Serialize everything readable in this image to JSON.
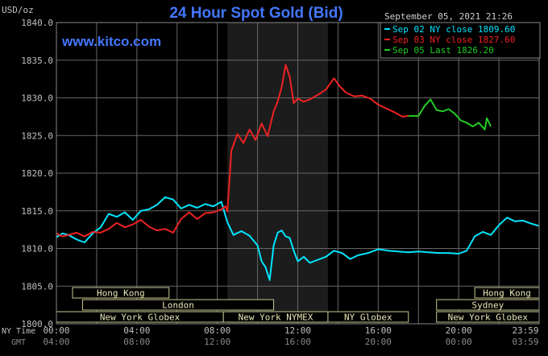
{
  "chart_data": {
    "type": "line",
    "title": "24 Hour Spot Gold (Bid)",
    "ylabel": "USD/oz",
    "site": "www.kitco.com",
    "timestamp": "September 05, 2021 21:26",
    "ylim": [
      1800,
      1840
    ],
    "yticks": [
      "1840.0",
      "1835.0",
      "1830.0",
      "1825.0",
      "1820.0",
      "1815.0",
      "1810.0",
      "1805.0",
      "1800.0"
    ],
    "yticks_values": [
      1840,
      1835,
      1830,
      1825,
      1820,
      1815,
      1810,
      1805,
      1800
    ],
    "x_range": [
      0,
      24
    ],
    "xticks_values": [
      0,
      4,
      8,
      12,
      16,
      20,
      23.983
    ],
    "xticks_ny": [
      "00:00",
      "04:00",
      "08:00",
      "12:00",
      "16:00",
      "20:00",
      "23:59"
    ],
    "xticks_gmt": [
      "04:00",
      "08:00",
      "12:00",
      "16:00",
      "20:00",
      "00:00",
      "03:59"
    ],
    "row_label_ny": "NY Time",
    "row_label_gmt": "GMT",
    "shaded_range": [
      8.5,
      13.5
    ],
    "colors": {
      "cyan": "#00e5ff",
      "red": "#ee2222",
      "green": "#22cc22",
      "grid": "#888888",
      "title": "#4477ff",
      "site": "#4477ff",
      "session_bg": "#000000",
      "session_border": "#c8c890",
      "text": "#c0c0c0"
    },
    "legend": [
      {
        "name": "Sep 02 NY close 1809.60",
        "color": "#00e5ff"
      },
      {
        "name": "Sep 03 NY close 1827.60",
        "color": "#ee2222"
      },
      {
        "name": "Sep 05 Last 1826.20",
        "color": "#22cc22"
      }
    ],
    "sessions": [
      {
        "label": "Hong Kong",
        "start": 0.8,
        "end": 5.6,
        "row": 0
      },
      {
        "label": "Hong Kong",
        "start": 20.8,
        "end": 24,
        "row": 0
      },
      {
        "label": "London",
        "start": 1.3,
        "end": 10.8,
        "row": 1
      },
      {
        "label": "Sydney",
        "start": 18.9,
        "end": 24,
        "row": 1
      },
      {
        "label": "New York Globex",
        "start": 0,
        "end": 8.3,
        "row": 2
      },
      {
        "label": "New York NYMEX",
        "start": 8.3,
        "end": 13.5,
        "row": 2
      },
      {
        "label": "NY Globex",
        "start": 13.5,
        "end": 17.5,
        "row": 2
      },
      {
        "label": "New York Globex",
        "start": 18.9,
        "end": 24,
        "row": 2
      }
    ],
    "series": [
      {
        "name": "Sep 02 NY close 1809.60",
        "color": "#00e5ff",
        "x": [
          0,
          0.3,
          0.6,
          1,
          1.4,
          1.8,
          2.2,
          2.6,
          3,
          3.4,
          3.8,
          4.2,
          4.6,
          5,
          5.4,
          5.8,
          6.2,
          6.6,
          7,
          7.4,
          7.8,
          8.2,
          8.5,
          8.8,
          9.2,
          9.6,
          10,
          10.2,
          10.4,
          10.6,
          10.8,
          11,
          11.2,
          11.4,
          11.6,
          11.8,
          12,
          12.3,
          12.6,
          13,
          13.4,
          13.8,
          14.2,
          14.6,
          15,
          15.5,
          16,
          16.5,
          17,
          17.5,
          18,
          18.5,
          19,
          19.5,
          20,
          20.4,
          20.8,
          21.2,
          21.6,
          22,
          22.4,
          22.8,
          23.2,
          23.6,
          23.98
        ],
        "y": [
          1811.5,
          1812,
          1811.8,
          1811.2,
          1810.8,
          1812,
          1812.8,
          1814.6,
          1814.2,
          1814.8,
          1813.8,
          1815,
          1815.2,
          1815.8,
          1816.8,
          1816.5,
          1815.3,
          1815.8,
          1815.4,
          1815.9,
          1815.6,
          1816.2,
          1813.5,
          1811.8,
          1812.3,
          1811.7,
          1810.4,
          1808.3,
          1807.5,
          1805.8,
          1810.4,
          1812.1,
          1812.4,
          1811.6,
          1811.4,
          1809.7,
          1808.3,
          1808.9,
          1808.1,
          1808.5,
          1808.9,
          1809.7,
          1809.4,
          1808.6,
          1809.1,
          1809.4,
          1809.9,
          1809.7,
          1809.6,
          1809.5,
          1809.6,
          1809.5,
          1809.4,
          1809.4,
          1809.3,
          1809.7,
          1811.6,
          1812.2,
          1811.8,
          1813.1,
          1814.1,
          1813.6,
          1813.7,
          1813.3,
          1813.0
        ]
      },
      {
        "name": "Sep 03 NY close 1827.60",
        "color": "#ee2222",
        "x": [
          0,
          0.3,
          0.6,
          1,
          1.4,
          1.8,
          2.2,
          2.6,
          3,
          3.4,
          3.8,
          4.2,
          4.6,
          5,
          5.4,
          5.8,
          6.2,
          6.6,
          7,
          7.4,
          7.8,
          8.2,
          8.4,
          8.5,
          8.7,
          9,
          9.3,
          9.6,
          9.9,
          10.2,
          10.5,
          10.8,
          11,
          11.2,
          11.4,
          11.6,
          11.8,
          12,
          12.3,
          12.6,
          13,
          13.4,
          13.8,
          14.1,
          14.4,
          14.8,
          15.2,
          15.6,
          16,
          16.4,
          16.8,
          17.2,
          17.5
        ],
        "y": [
          1812,
          1811.6,
          1811.8,
          1812.1,
          1811.6,
          1812.2,
          1812.1,
          1812.6,
          1813.4,
          1812.8,
          1813.2,
          1813.8,
          1812.9,
          1812.4,
          1812.6,
          1812.1,
          1813.9,
          1814.8,
          1813.9,
          1814.7,
          1814.8,
          1815.2,
          1815.6,
          1814.9,
          1823,
          1825.2,
          1824,
          1825.8,
          1824.4,
          1826.6,
          1824.9,
          1828.2,
          1829.5,
          1831.4,
          1834.4,
          1832.8,
          1829.3,
          1829.9,
          1829.5,
          1829.8,
          1830.4,
          1831.1,
          1832.6,
          1831.5,
          1830.7,
          1830.2,
          1830.3,
          1829.9,
          1829.1,
          1828.6,
          1828.1,
          1827.5,
          1827.6
        ]
      },
      {
        "name": "Sep 05 Last 1826.20",
        "color": "#22cc22",
        "x": [
          17.5,
          18,
          18.3,
          18.6,
          18.9,
          19.2,
          19.5,
          19.8,
          20.1,
          20.4,
          20.7,
          21,
          21.3,
          21.4,
          21.6
        ],
        "y": [
          1827.6,
          1827.6,
          1828.9,
          1829.8,
          1828.4,
          1828.2,
          1828.5,
          1827.9,
          1827,
          1826.7,
          1826.2,
          1826.7,
          1825.8,
          1827.3,
          1826.2
        ]
      }
    ]
  }
}
